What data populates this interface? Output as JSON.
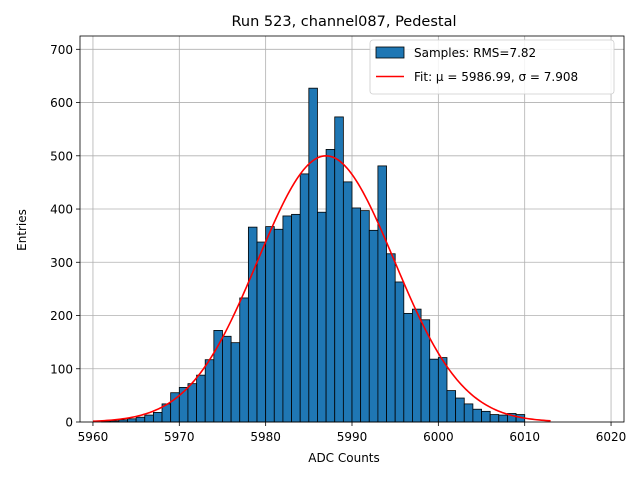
{
  "chart_data": {
    "type": "bar",
    "title": "Run 523, channel087, Pedestal",
    "xlabel": "ADC Counts",
    "ylabel": "Entries",
    "xlim": [
      5958.5,
      6021.5
    ],
    "ylim": [
      0,
      725
    ],
    "xticks": [
      5960,
      5970,
      5980,
      5990,
      6000,
      6010,
      6020
    ],
    "yticks": [
      0,
      100,
      200,
      300,
      400,
      500,
      600,
      700
    ],
    "grid": true,
    "legend_position": "top-right",
    "colors": {
      "bars": "#1f77b4",
      "bar_edge": "#000000",
      "fit": "#ff0000",
      "grid": "#b0b0b0"
    },
    "series": [
      {
        "name": "Samples: RMS=7.82",
        "kind": "histogram",
        "bin_width": 1,
        "bin_starts": [
          5960,
          5961,
          5962,
          5963,
          5964,
          5965,
          5966,
          5967,
          5968,
          5969,
          5970,
          5971,
          5972,
          5973,
          5974,
          5975,
          5976,
          5977,
          5978,
          5979,
          5980,
          5981,
          5982,
          5983,
          5984,
          5985,
          5986,
          5987,
          5988,
          5989,
          5990,
          5991,
          5992,
          5993,
          5994,
          5995,
          5996,
          5997,
          5998,
          5999,
          6000,
          6001,
          6002,
          6003,
          6004,
          6005,
          6006,
          6007,
          6008,
          6009,
          6010,
          6011,
          6012
        ],
        "values": [
          0,
          1,
          2,
          4,
          6,
          9,
          13,
          18,
          34,
          55,
          65,
          72,
          88,
          117,
          172,
          161,
          149,
          233,
          366,
          338,
          367,
          362,
          387,
          390,
          466,
          627,
          394,
          512,
          573,
          451,
          402,
          397,
          360,
          481,
          316,
          263,
          204,
          212,
          192,
          118,
          121,
          59,
          45,
          34,
          24,
          20,
          14,
          13,
          16,
          14,
          0,
          0,
          0
        ]
      },
      {
        "name": "Fit: μ = 5986.99, σ = 7.908",
        "kind": "line",
        "function": "gaussian",
        "mu": 5986.99,
        "sigma": 7.908,
        "amplitude": 500,
        "x_range": [
          5960,
          6013
        ]
      }
    ]
  }
}
